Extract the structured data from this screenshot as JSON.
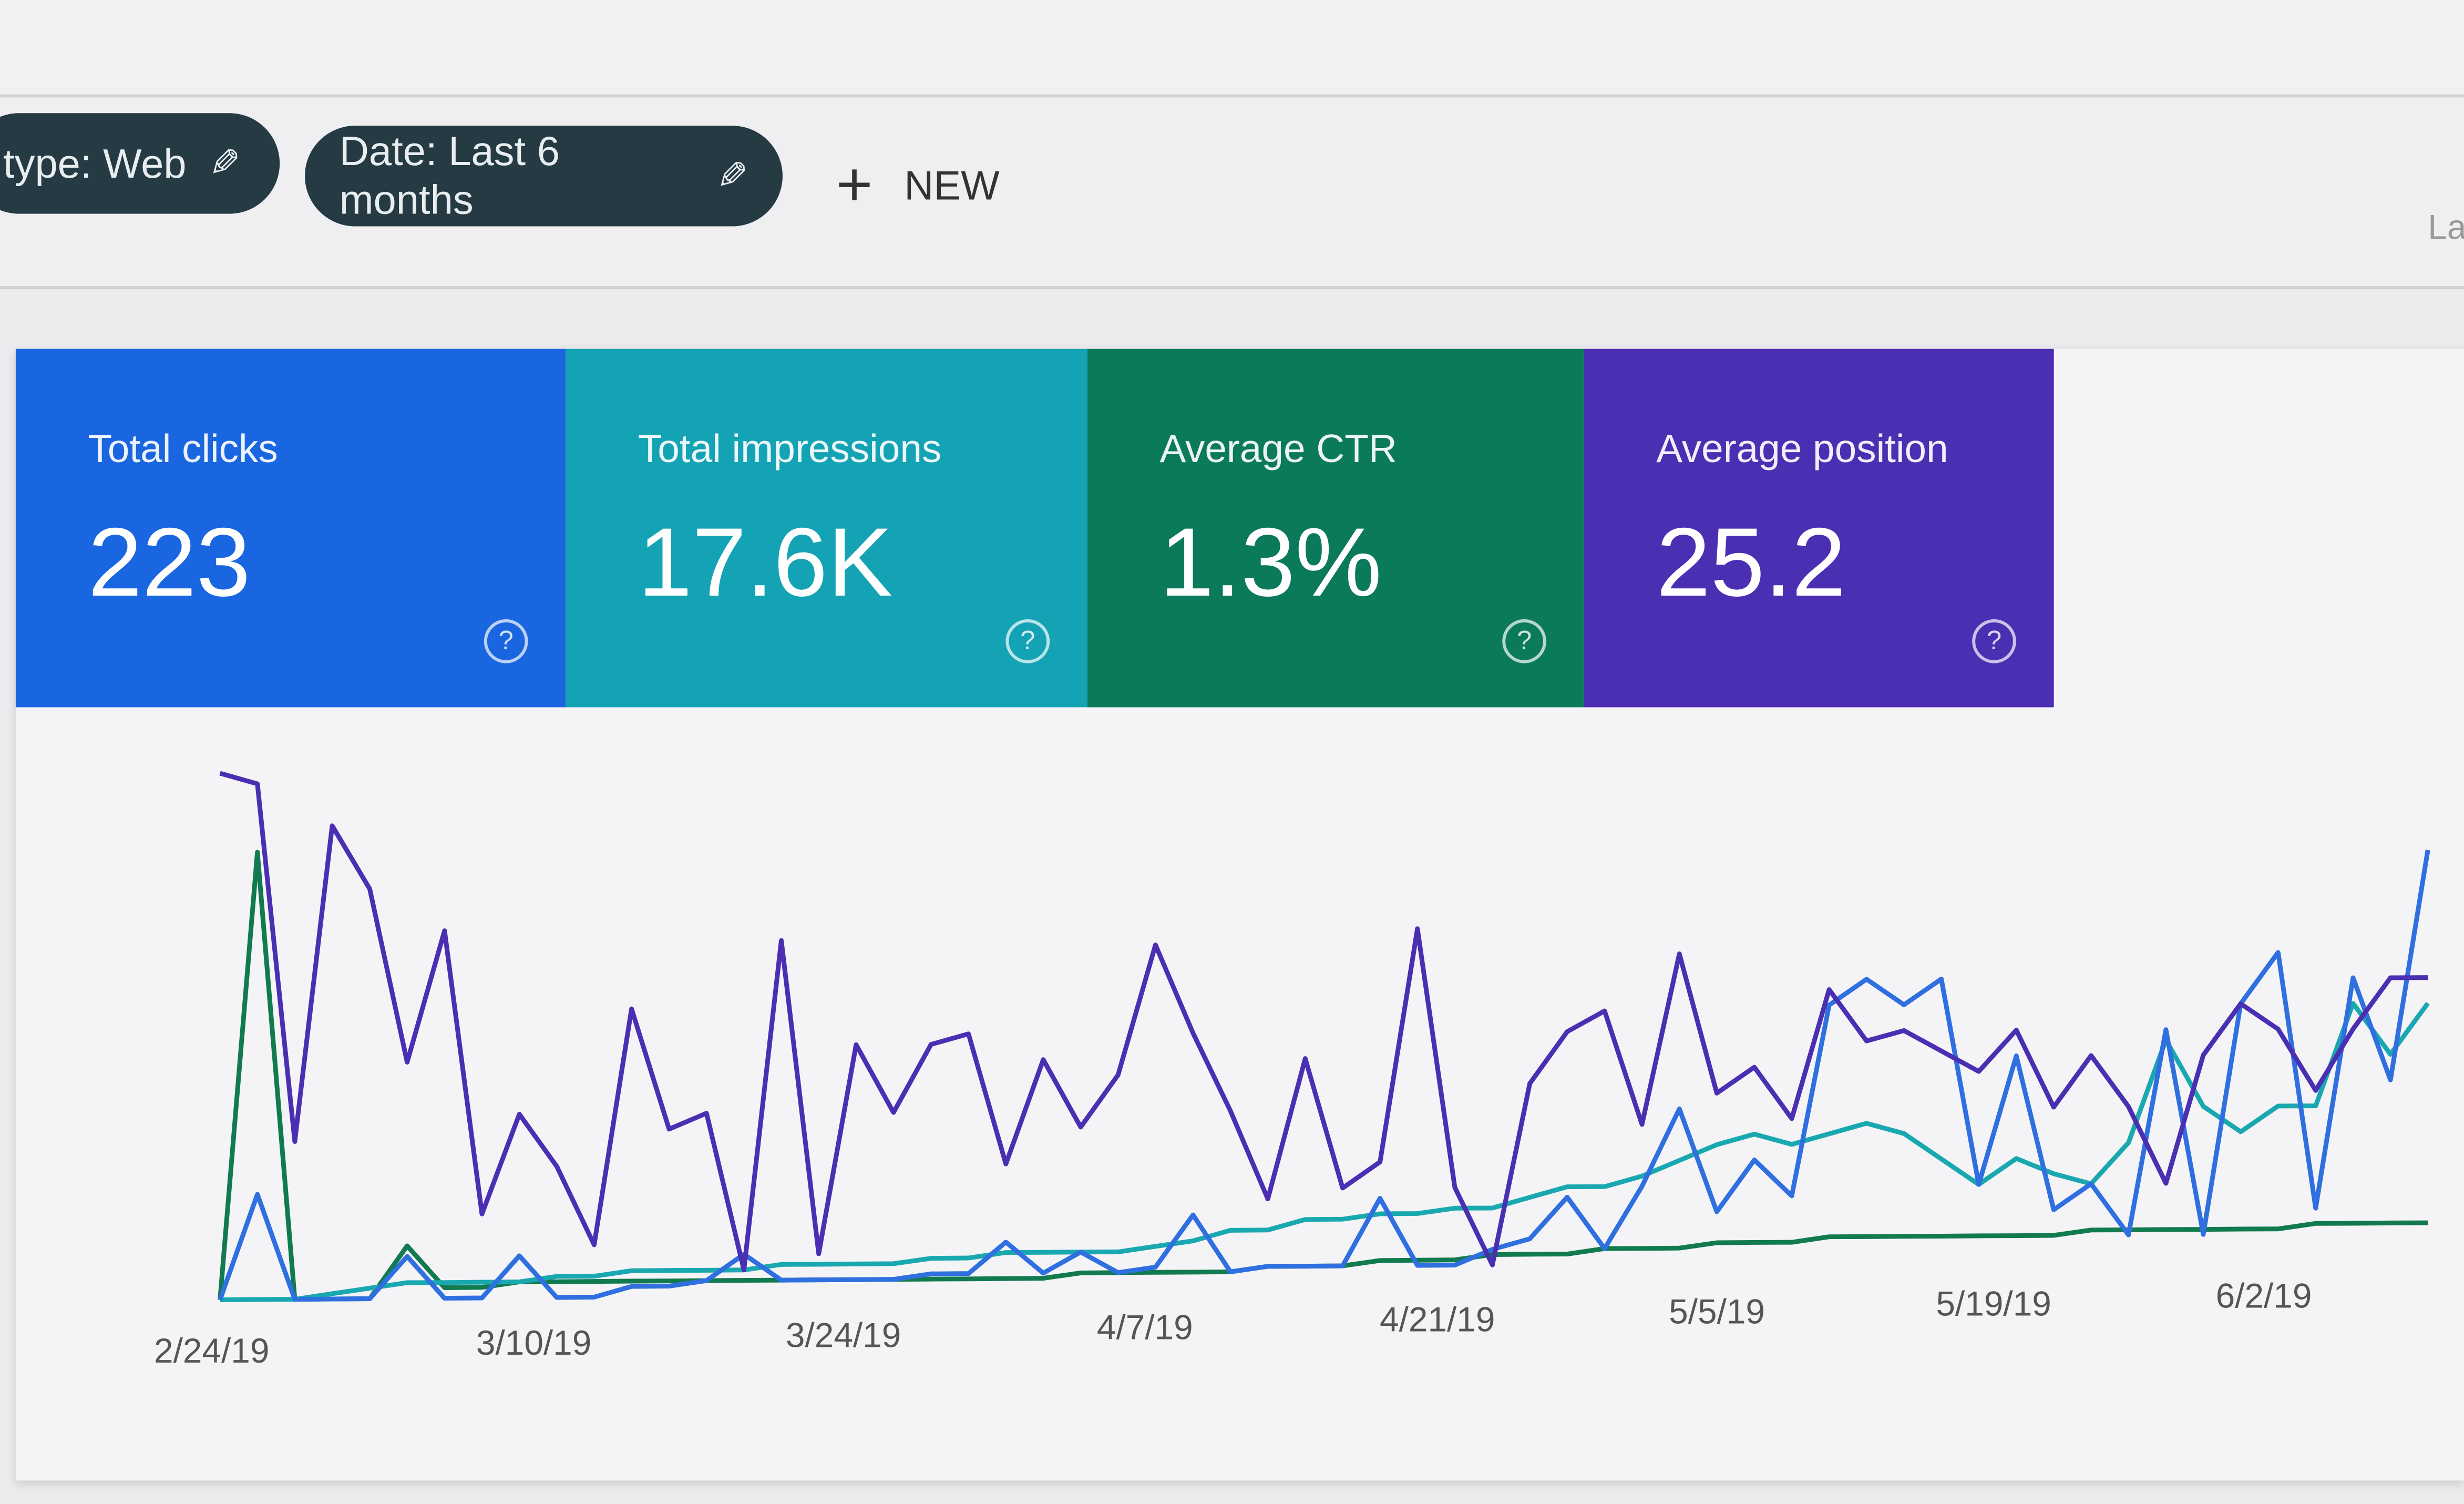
{
  "filters": {
    "chips": [
      {
        "label": "type: Web",
        "icon": "pencil-icon"
      },
      {
        "label": "Date: Last 6 months",
        "icon": "pencil-icon"
      }
    ],
    "new_label": "NEW",
    "cut_off_text": "La"
  },
  "metrics": [
    {
      "label": "Total clicks",
      "value": "223",
      "color": "#1a66e0"
    },
    {
      "label": "Total impressions",
      "value": "17.6K",
      "color": "#14a3b5"
    },
    {
      "label": "Average CTR",
      "value": "1.3%",
      "color": "#0b7a5a"
    },
    {
      "label": "Average position",
      "value": "25.2",
      "color": "#4a2fb2"
    }
  ],
  "help_glyph": "?",
  "chart_data": {
    "type": "line",
    "x_tick_labels": [
      "2/24/19",
      "3/10/19",
      "3/24/19",
      "4/7/19",
      "4/21/19",
      "5/5/19",
      "5/19/19",
      "6/2/19"
    ],
    "y_axis": "hidden, relative scale per series",
    "grid": false,
    "series": [
      {
        "metric": "Average position",
        "color": "#4a2fb2",
        "values": [
          100,
          98,
          30,
          90,
          78,
          45,
          70,
          16,
          35,
          25,
          10,
          55,
          32,
          35,
          5,
          68,
          8,
          48,
          35,
          48,
          50,
          25,
          45,
          32,
          42,
          67,
          50,
          35,
          18,
          45,
          20,
          25,
          70,
          20,
          5,
          40,
          50,
          54,
          32,
          65,
          38,
          43,
          33,
          58,
          48,
          50,
          46,
          42,
          50,
          35,
          45,
          35,
          20,
          45,
          55,
          50,
          38,
          50,
          60,
          60
        ]
      },
      {
        "metric": "Total clicks",
        "color": "#2f6fdf",
        "values": [
          0,
          20,
          0,
          0,
          0,
          8,
          0,
          0,
          8,
          0,
          0,
          2,
          2,
          3,
          8,
          3,
          3,
          3,
          3,
          4,
          4,
          10,
          4,
          8,
          4,
          5,
          15,
          4,
          5,
          5,
          5,
          18,
          5,
          5,
          8,
          10,
          18,
          8,
          20,
          35,
          15,
          25,
          18,
          55,
          60,
          55,
          60,
          20,
          45,
          15,
          20,
          10,
          50,
          10,
          55,
          65,
          15,
          60,
          40,
          85
        ]
      },
      {
        "metric": "Total impressions",
        "color": "#1aa8b0",
        "values": [
          0,
          0,
          0,
          1,
          2,
          3,
          3,
          3,
          3,
          4,
          4,
          5,
          5,
          5,
          5,
          6,
          6,
          6,
          6,
          7,
          7,
          8,
          8,
          8,
          8,
          9,
          10,
          12,
          12,
          14,
          14,
          15,
          15,
          16,
          16,
          18,
          20,
          20,
          22,
          25,
          28,
          30,
          28,
          30,
          32,
          30,
          25,
          20,
          25,
          22,
          20,
          28,
          48,
          35,
          30,
          35,
          35,
          55,
          45,
          55
        ]
      },
      {
        "metric": "Average CTR",
        "color": "#117a4e",
        "values": [
          0,
          85,
          0,
          0,
          0,
          10,
          2,
          2,
          3,
          3,
          3,
          3,
          3,
          3,
          3,
          3,
          3,
          3,
          3,
          3,
          3,
          3,
          3,
          4,
          4,
          4,
          4,
          4,
          5,
          5,
          5,
          6,
          6,
          6,
          7,
          7,
          7,
          8,
          8,
          8,
          9,
          9,
          9,
          10,
          10,
          10,
          10,
          10,
          10,
          10,
          11,
          11,
          11,
          11,
          11,
          11,
          12,
          12,
          12,
          12
        ]
      }
    ]
  }
}
